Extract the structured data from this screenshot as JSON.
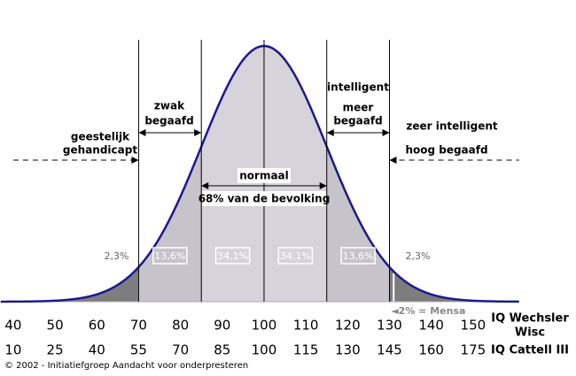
{
  "chart_data": {
    "type": "bell-curve",
    "mean": 100,
    "sd": 15,
    "xlim": [
      37,
      161
    ],
    "xticks": [
      40,
      50,
      60,
      70,
      80,
      90,
      100,
      110,
      120,
      130,
      140,
      150
    ],
    "x2lim": [
      5.5,
      191.5
    ],
    "x2ticks": [
      10,
      25,
      40,
      55,
      70,
      85,
      100,
      115,
      130,
      145,
      160,
      175
    ],
    "x_label": [
      "IQ Wechsler",
      "Wisc"
    ],
    "x2_label": "IQ Cattell III",
    "dividers": [
      70,
      85,
      100,
      115,
      130
    ],
    "region_labels": [
      {
        "value": 2.3,
        "label": "2,3%"
      },
      {
        "value": 13.6,
        "label": "13,6%"
      },
      {
        "value": 34.1,
        "label": "34,1%"
      },
      {
        "value": 34.1,
        "label": "34,1%"
      },
      {
        "value": 13.6,
        "label": "13,6%"
      },
      {
        "value": 2.3,
        "label": "2,3%"
      }
    ],
    "region_colors": [
      "#7d7d80",
      "#c6c3cb",
      "#d6d3db",
      "#d6d3db",
      "#c6c3cb",
      "#7d7d80"
    ],
    "curve_color": "#1a1a8c",
    "mensa": {
      "x": 131,
      "label": "◄2% = Mensa"
    },
    "annotations": [
      "geestelijk",
      "gehandicapt",
      "zwak",
      "begaafd",
      "normaal",
      "68% van de bevolking",
      "intelligent",
      "meer",
      "begaafd",
      "zeer intelligent",
      "hoog begaafd"
    ],
    "footer": "© 2002 - Initiatiefgroep  Aandacht voor onderpresteren"
  }
}
